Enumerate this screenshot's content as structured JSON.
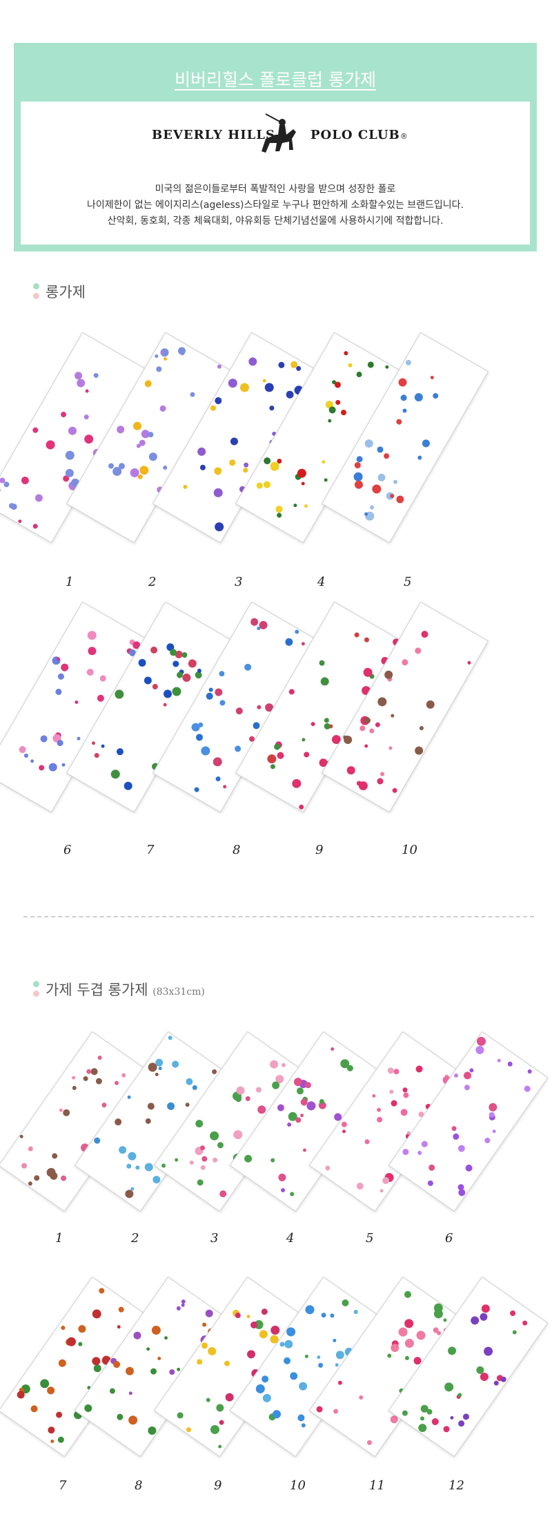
{
  "header": {
    "title": "비버리힐스 폴로클럽 롱가제",
    "brand_left": "BEVERLY HILLS",
    "brand_right": "POLO CLUB",
    "brand_mark": "®",
    "description": [
      "미국의 젊은이들로부터 폭발적인 사랑을 받으며 성장한 폴로",
      "나이제한이 없는 에이지리스(ageless)스타일로 누구나 편안하게 소화할수있는 브랜드입니다.",
      "산악회, 동호회, 각종 체육대회, 야유회등 단체기념선물에 사용하시기에 적합합니다."
    ]
  },
  "section1": {
    "title": "롱가제",
    "labels": [
      "1",
      "2",
      "3",
      "4",
      "5",
      "6",
      "7",
      "8",
      "9",
      "10"
    ]
  },
  "section2": {
    "title": "가제 두겹 롱가제",
    "size": "(83x31cm)",
    "labels": [
      "1",
      "2",
      "3",
      "4",
      "5",
      "6",
      "7",
      "8",
      "9",
      "10",
      "11",
      "12"
    ]
  },
  "colors": {
    "header_bg": "#a8e3cd",
    "dot_green": "#a8dfc6",
    "dot_pink": "#f3c8c8"
  }
}
